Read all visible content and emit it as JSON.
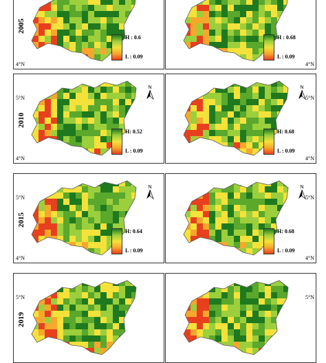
{
  "panels": [
    {
      "year": "2005",
      "lat_top": "",
      "lat_bottom": "4°N",
      "high": "H : 0.6",
      "low": "L : 0.09",
      "north": "",
      "seed": 3
    },
    {
      "year": "",
      "lat_top": "",
      "lat_bottom": "4°N",
      "high": "H : 0.68",
      "low": "L : 0.09",
      "north": "",
      "seed": 7
    },
    {
      "year": "2010",
      "lat_top": "5°N",
      "lat_bottom": "4°N",
      "high": "H: 0.52",
      "low": "L : 0.09",
      "north": "N",
      "seed": 11
    },
    {
      "year": "",
      "lat_top": "5°N",
      "lat_bottom": "4°N",
      "high": "H: 0.68",
      "low": "L : 0.09",
      "north": "N",
      "seed": 19
    },
    {
      "year": "2015",
      "lat_top": "5°N",
      "lat_bottom": "4°N",
      "high": "H: 0.64",
      "low": "L : 0.09",
      "north": "N",
      "seed": 23
    },
    {
      "year": "",
      "lat_top": "5°N",
      "lat_bottom": "4°N",
      "high": "H: 0.68",
      "low": "L : 0.09",
      "north": "N",
      "seed": 29
    },
    {
      "year": "2019",
      "lat_top": "5°N",
      "lat_bottom": "",
      "high": "",
      "low": "",
      "north": "",
      "seed": 31
    },
    {
      "year": "",
      "lat_top": "5°N",
      "lat_bottom": "",
      "high": "",
      "low": "",
      "north": "",
      "seed": 37
    }
  ],
  "colors": {
    "dark_green": "#1f7a1f",
    "green": "#5aa82c",
    "light_green": "#9ccf3c",
    "yellow": "#f4e23a",
    "orange": "#f7a72c",
    "red": "#e8401f"
  }
}
